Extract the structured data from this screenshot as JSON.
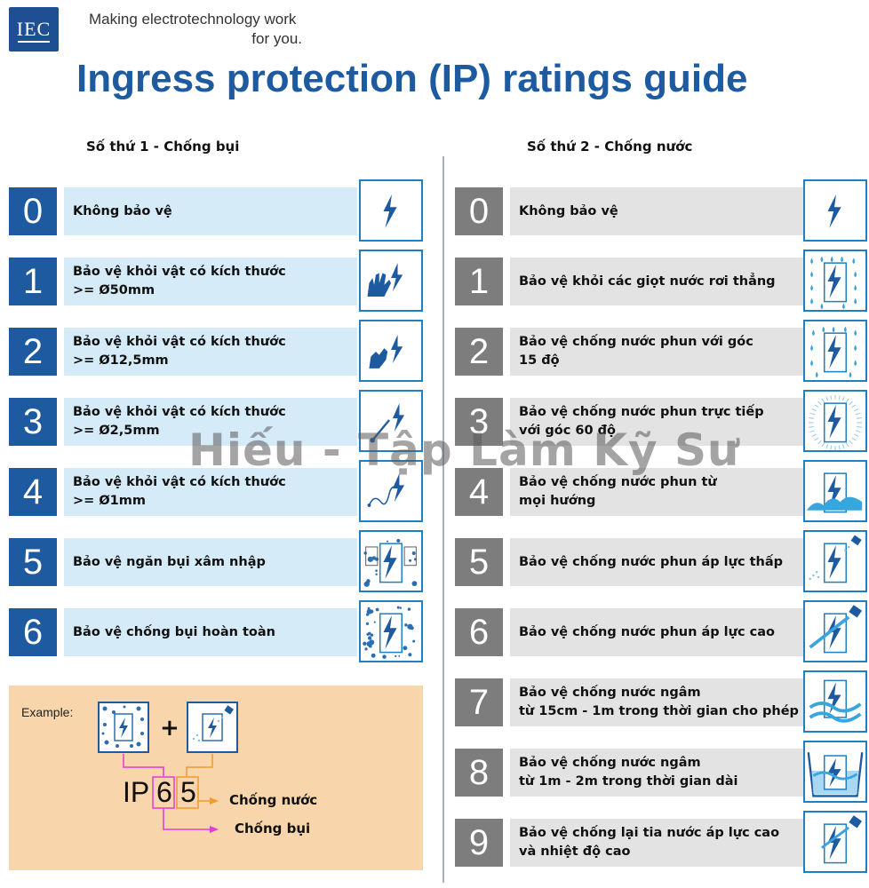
{
  "header": {
    "logo_text": "IEC",
    "tagline_line1": "Making  electrotechnology work",
    "tagline_line2": "for you.",
    "title": "Ingress protection (IP) ratings guide"
  },
  "dust": {
    "heading": "Số thứ 1 - Chống bụi",
    "rows": [
      {
        "num": "0",
        "text": "Không bảo vệ",
        "icon": "lightning-icon"
      },
      {
        "num": "1",
        "text": "Bảo vệ khỏi vật có kích thước\n>= Ø50mm",
        "icon": "hand-icon"
      },
      {
        "num": "2",
        "text": "Bảo vệ khỏi vật có kích thước\n>= Ø12,5mm",
        "icon": "finger-icon"
      },
      {
        "num": "3",
        "text": "Bảo vệ khỏi vật có kích thước\n>= Ø2,5mm",
        "icon": "tool-icon"
      },
      {
        "num": "4",
        "text": "Bảo vệ khỏi vật có kích thước\n>= Ø1mm",
        "icon": "wire-icon"
      },
      {
        "num": "5",
        "text": "Bảo vệ ngăn bụi xâm nhập",
        "icon": "dust-protected-icon"
      },
      {
        "num": "6",
        "text": "Bảo vệ chống bụi hoàn toàn",
        "icon": "dust-tight-icon"
      }
    ]
  },
  "water": {
    "heading": "Số thứ 2  - Chống nước",
    "rows": [
      {
        "num": "0",
        "text": "Không bảo vệ",
        "icon": "lightning-icon"
      },
      {
        "num": "1",
        "text": "Bảo vệ khỏi các giọt nước rơi thẳng",
        "icon": "vertical-drops-icon"
      },
      {
        "num": "2",
        "text": "Bảo vệ chống nước phun với góc\n15 độ",
        "icon": "tilted-drops-icon"
      },
      {
        "num": "3",
        "text": "Bảo vệ chống nước phun trực tiếp\nvới góc 60 độ",
        "icon": "spray-icon"
      },
      {
        "num": "4",
        "text": "Bảo vệ chống nước phun từ\nmọi hướng",
        "icon": "splash-icon"
      },
      {
        "num": "5",
        "text": "Bảo vệ chống nước phun áp lực thấp",
        "icon": "low-pressure-jet-icon"
      },
      {
        "num": "6",
        "text": "Bảo vệ chống nước phun áp lực cao",
        "icon": "high-pressure-jet-icon"
      },
      {
        "num": "7",
        "text": "Bảo vệ chống nước ngâm\ntừ 15cm - 1m trong thời gian cho phép",
        "icon": "immersion-icon"
      },
      {
        "num": "8",
        "text": "Bảo vệ chống nước ngâm\ntừ 1m - 2m trong thời gian dài",
        "icon": "submersion-icon"
      },
      {
        "num": "9",
        "text": "Bảo vệ chống lại tia nước áp lực cao\nvà nhiệt độ cao",
        "icon": "hot-jet-icon"
      }
    ]
  },
  "example": {
    "label": "Example:",
    "plus": "+",
    "ip_prefix": "IP",
    "first_digit": "6",
    "second_digit": "5",
    "water_label": "Chống nước",
    "dust_label": "Chống bụi"
  },
  "watermark": "Hiếu - Tập Làm Kỹ Sư",
  "colors": {
    "brand_blue": "#1d5aa0",
    "light_blue": "#d6ebf8",
    "grey": "#7d7d7d",
    "light_grey": "#e3e3e3",
    "example_bg": "#f8d5aa",
    "pink": "#e23ad8",
    "orange": "#f29a2e"
  }
}
